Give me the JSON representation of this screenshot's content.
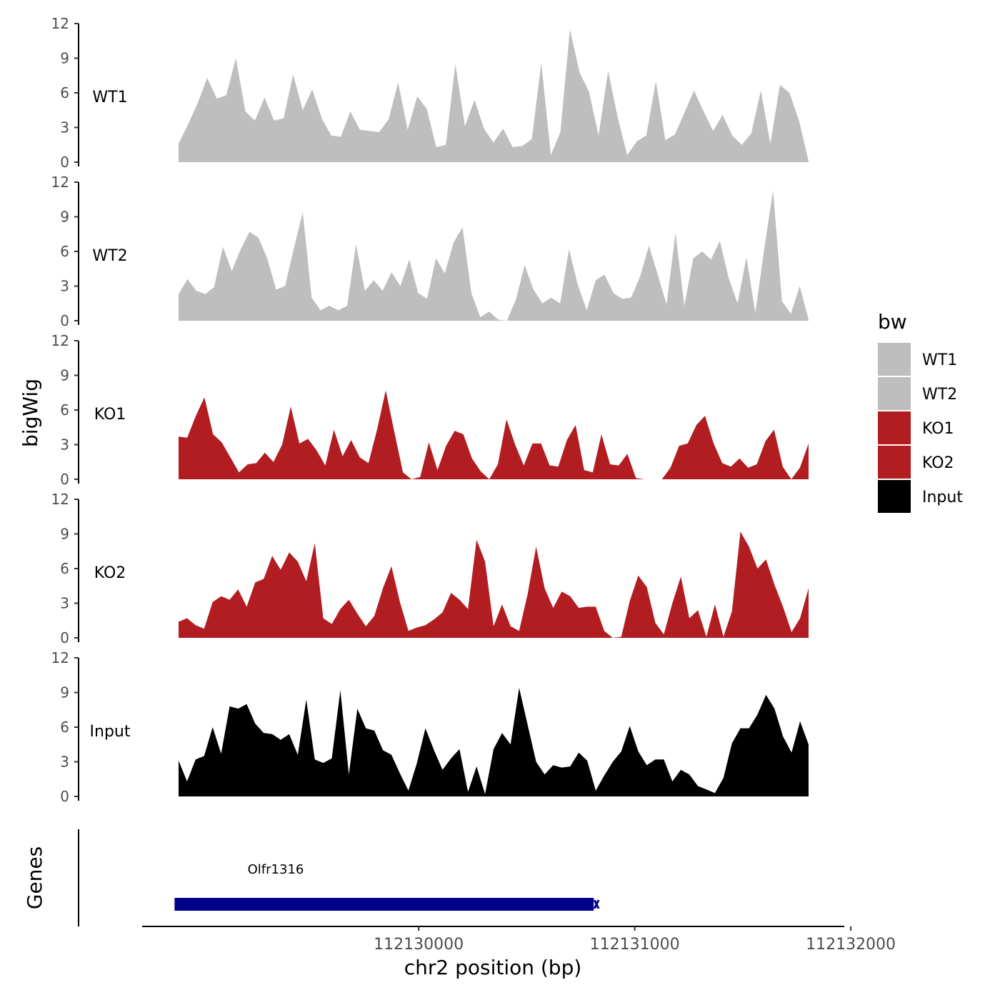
{
  "chart_data": {
    "type": "area",
    "xlabel": "chr2 position (bp)",
    "ylabel_tracks": "bigWig",
    "ylabel_genes": "Genes",
    "xlim": [
      112128720,
      112131970
    ],
    "x_ticks": [
      112130000,
      112131000,
      112132000
    ],
    "x_tick_labels": [
      "112130000",
      "112131000",
      "112132000"
    ],
    "ylim": [
      0,
      12
    ],
    "y_ticks": [
      0,
      3,
      6,
      9,
      12
    ],
    "y_tick_labels": [
      "0",
      "3",
      "6",
      "9",
      "12"
    ],
    "colors": {
      "WT1": "#bebebe",
      "WT2": "#bebebe",
      "KO1": "#b21d21",
      "KO2": "#b21d21",
      "Input": "#000000",
      "gene": "#00008b"
    },
    "series": [
      {
        "name": "WT1",
        "label": "WT1",
        "color": "#bebebe",
        "values": [
          1.6,
          3.3,
          5.1,
          7.3,
          5.5,
          5.8,
          9.0,
          4.4,
          3.6,
          5.6,
          3.6,
          3.8,
          7.6,
          4.5,
          6.3,
          3.8,
          2.3,
          2.2,
          4.4,
          2.8,
          2.7,
          2.6,
          3.7,
          6.9,
          2.8,
          5.7,
          4.6,
          1.3,
          1.5,
          8.5,
          3.1,
          5.4,
          2.9,
          1.7,
          2.9,
          1.3,
          1.4,
          2.0,
          8.6,
          0.6,
          2.6,
          11.5,
          7.8,
          6.1,
          2.3,
          7.9,
          3.9,
          0.6,
          1.8,
          2.3,
          7.0,
          1.9,
          2.4,
          4.3,
          6.2,
          4.4,
          2.7,
          4.1,
          2.3,
          1.5,
          2.5,
          6.2,
          1.6,
          6.7,
          6.0,
          3.6,
          0.1
        ]
      },
      {
        "name": "WT2",
        "label": "WT2",
        "color": "#bebebe",
        "values": [
          2.3,
          3.6,
          2.6,
          2.3,
          2.9,
          6.4,
          4.3,
          6.2,
          7.7,
          7.2,
          5.4,
          2.7,
          3.0,
          6.3,
          9.4,
          2.0,
          0.9,
          1.3,
          0.9,
          1.3,
          6.6,
          2.6,
          3.5,
          2.6,
          4.2,
          3.0,
          5.3,
          2.4,
          1.9,
          5.4,
          4.1,
          6.8,
          8.1,
          2.4,
          0.3,
          0.8,
          0.1,
          0.0,
          1.8,
          4.8,
          2.7,
          1.5,
          2.0,
          1.5,
          6.2,
          3.1,
          0.9,
          3.5,
          4.0,
          2.4,
          1.9,
          2.0,
          3.8,
          6.5,
          4.0,
          1.4,
          7.6,
          1.3,
          5.4,
          6.0,
          5.3,
          6.9,
          3.7,
          1.5,
          5.5,
          0.7,
          6.2,
          11.3,
          1.7,
          0.6,
          3.0,
          0.1
        ]
      },
      {
        "name": "KO1",
        "label": "KO1",
        "color": "#b21d21",
        "values": [
          3.7,
          3.6,
          5.5,
          7.1,
          3.9,
          3.2,
          1.9,
          0.6,
          1.3,
          1.4,
          2.3,
          1.5,
          3.0,
          6.3,
          3.1,
          3.5,
          2.5,
          1.2,
          4.3,
          2.0,
          3.4,
          1.9,
          1.4,
          4.3,
          7.7,
          4.1,
          0.6,
          0.0,
          0.2,
          3.2,
          0.8,
          2.9,
          4.2,
          3.9,
          1.8,
          0.7,
          0.0,
          1.3,
          5.2,
          3.0,
          1.2,
          3.1,
          3.1,
          1.2,
          1.1,
          3.4,
          4.7,
          0.8,
          0.6,
          3.9,
          1.3,
          1.2,
          2.2,
          0.1,
          0.0,
          0.0,
          0.0,
          1.0,
          2.9,
          3.1,
          4.7,
          5.5,
          3.1,
          1.4,
          1.1,
          1.8,
          1.0,
          1.3,
          3.3,
          4.3,
          1.1,
          0.0,
          1.0,
          3.1
        ]
      },
      {
        "name": "KO2",
        "label": "KO2",
        "color": "#b21d21",
        "values": [
          1.4,
          1.7,
          1.1,
          0.8,
          3.1,
          3.6,
          3.3,
          4.2,
          2.7,
          4.8,
          5.1,
          7.1,
          5.9,
          7.4,
          6.6,
          4.9,
          8.2,
          1.7,
          1.2,
          2.5,
          3.3,
          2.1,
          1.0,
          1.9,
          4.3,
          6.2,
          3.1,
          0.6,
          0.9,
          1.1,
          1.6,
          2.2,
          3.9,
          3.3,
          2.5,
          8.5,
          6.6,
          1.0,
          2.9,
          1.0,
          0.6,
          3.8,
          7.9,
          4.3,
          2.6,
          4.0,
          3.6,
          2.6,
          2.7,
          2.7,
          0.6,
          0.0,
          0.1,
          3.2,
          5.4,
          4.4,
          1.3,
          0.3,
          3.0,
          5.3,
          1.7,
          2.4,
          0.1,
          2.9,
          0.1,
          2.3,
          9.2,
          7.9,
          6.0,
          6.8,
          4.6,
          2.7,
          0.5,
          1.7,
          4.3
        ]
      },
      {
        "name": "Input",
        "label": "Input",
        "color": "#000000",
        "values": [
          3.1,
          1.3,
          3.2,
          3.5,
          6.0,
          3.7,
          7.8,
          7.6,
          8.0,
          6.3,
          5.5,
          5.4,
          4.9,
          5.4,
          3.6,
          8.4,
          3.2,
          2.9,
          3.3,
          9.2,
          1.9,
          7.6,
          5.9,
          5.7,
          4.0,
          3.6,
          2.0,
          0.5,
          2.9,
          5.9,
          4.0,
          2.3,
          3.3,
          4.1,
          0.4,
          2.6,
          0.2,
          4.1,
          5.5,
          4.5,
          9.4,
          6.2,
          3.0,
          1.9,
          2.7,
          2.5,
          2.6,
          3.8,
          3.1,
          0.5,
          1.8,
          3.0,
          3.9,
          6.1,
          3.9,
          2.7,
          3.2,
          3.2,
          1.3,
          2.3,
          1.9,
          0.9,
          0.6,
          0.3,
          1.6,
          4.6,
          5.9,
          5.9,
          7.1,
          8.8,
          7.6,
          5.2,
          3.8,
          6.5,
          4.5
        ]
      }
    ],
    "genes": [
      {
        "name": "Olfr1316",
        "start": 112128870,
        "end": 112130810,
        "strand": "-"
      }
    ],
    "legend": {
      "title": "bw",
      "position": "right",
      "entries": [
        "WT1",
        "WT2",
        "KO1",
        "KO2",
        "Input"
      ]
    }
  }
}
